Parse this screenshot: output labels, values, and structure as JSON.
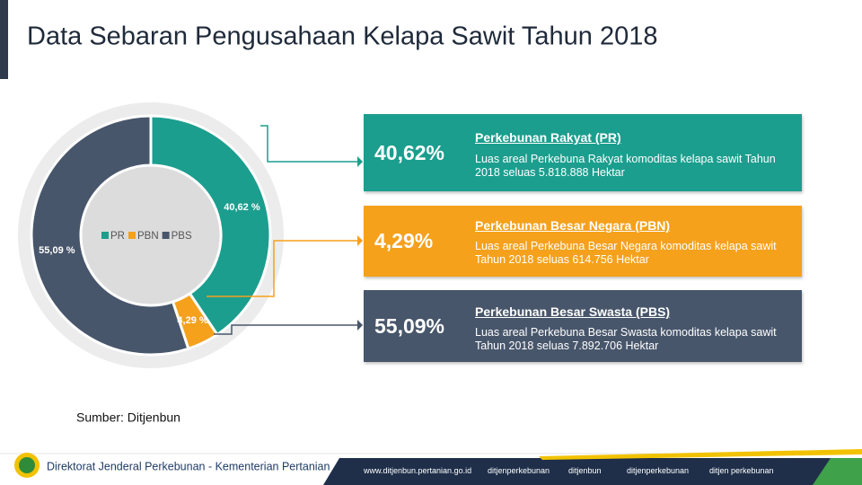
{
  "title": "Data Sebaran Pengusahaan Kelapa Sawit Tahun 2018",
  "chart_data": {
    "type": "donut",
    "categories": [
      "PR",
      "PBN",
      "PBS"
    ],
    "values": [
      40.62,
      4.29,
      55.09
    ],
    "value_labels": [
      "40,62 %",
      "4,29 %",
      "55,09 %"
    ],
    "colors": [
      "#1b9e8e",
      "#f5a11c",
      "#48566b"
    ]
  },
  "cards": [
    {
      "percent": "40,62%",
      "title": "Perkebunan Rakyat (PR)",
      "text": "Luas areal Perkebuna Rakyat komoditas kelapa sawit Tahun 2018 seluas 5.818.888 Hektar"
    },
    {
      "percent": "4,29%",
      "title": "Perkebunan Besar Negara (PBN)",
      "text": "Luas areal Perkebuna Besar Negara komoditas kelapa sawit Tahun 2018 seluas 614.756 Hektar"
    },
    {
      "percent": "55,09%",
      "title": "Perkebunan Besar Swasta (PBS)",
      "text": "Luas areal Perkebuna Besar Swasta komoditas kelapa sawit Tahun 2018 seluas  7.892.706 Hektar"
    }
  ],
  "source": "Sumber: Ditjenbun",
  "footer": {
    "org": "Direktorat Jenderal Perkebunan - Kementerian Pertanian",
    "links": [
      "www.ditjenbun.pertanian.go.id",
      "ditjenperkebunan",
      "ditjenbun",
      "ditjenperkebunan",
      "ditjen perkebunan"
    ]
  }
}
